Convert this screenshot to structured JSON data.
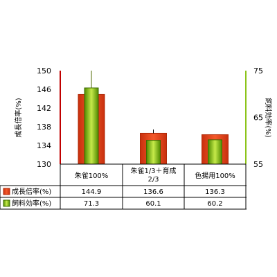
{
  "chart_data": {
    "type": "bar",
    "categories": [
      "朱雀100%",
      "朱雀1/3＋育成2/3",
      "色揚用100%"
    ],
    "category_lines": [
      [
        "朱雀100%"
      ],
      [
        "朱雀1/3＋育成",
        "2/3"
      ],
      [
        "色揚用100%"
      ]
    ],
    "series": [
      {
        "name": "成長倍率(%)",
        "axis": "left",
        "values": [
          144.9,
          136.6,
          136.3
        ],
        "display_values": [
          "144.9",
          "136.6",
          "136.3"
        ],
        "color": "#e8461c",
        "error_bar_upper": [
          null,
          137.4,
          null
        ]
      },
      {
        "name": "飼料効率(%)",
        "axis": "right",
        "values": [
          71.3,
          60.1,
          60.2
        ],
        "display_values": [
          "71.3",
          "60.1",
          "60.2"
        ],
        "color": "#8cc41a",
        "error_bar_upper": [
          75,
          null,
          null
        ]
      }
    ],
    "ylabel_left": "成長倍率(%)",
    "ylabel_right": "飼料効率(%)",
    "ylim_left": [
      130,
      150
    ],
    "yticks_left": [
      130,
      134,
      138,
      142,
      146,
      150
    ],
    "ylim_right": [
      55,
      75
    ],
    "yticks_right": [
      55,
      65,
      75
    ],
    "legend": "data-table"
  },
  "colors": {
    "left_axis": "#c00000",
    "right_axis": "#8cc41a",
    "bar_red_fill": "#e8461c",
    "bar_red_edge": "#b02a08",
    "bar_green_fill": "#8cc41a",
    "bar_green_edge": "#3d6b00"
  }
}
